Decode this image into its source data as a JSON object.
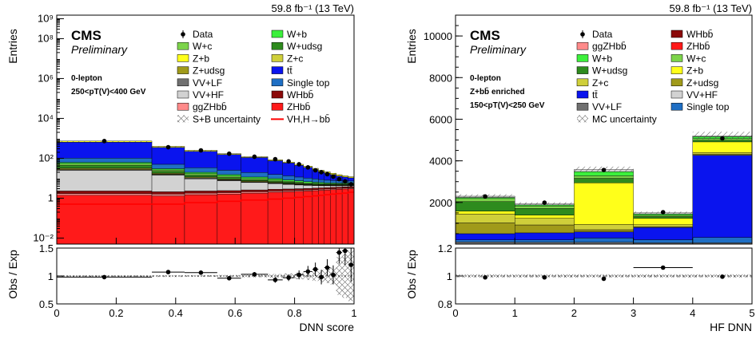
{
  "colors": {
    "ZHbb": "#ff1a1a",
    "ggZHbb": "#ff8a8a",
    "WHbb": "#8b0a0a",
    "Wb": "#3cf03c",
    "Wc": "#7cd44a",
    "Wudsg": "#2e8b1e",
    "Zb": "#ffff1a",
    "Zc": "#cfcf3a",
    "Zudsg": "#a09a1a",
    "ttbar": "#0a14ee",
    "singletop": "#1f6fc4",
    "VVLF": "#707070",
    "VVHF": "#d2d2d2",
    "signal_line": "#ff0000"
  },
  "chart_data": [
    {
      "type": "bar",
      "panel": "left",
      "lumi": "59.8 fb⁻¹ (13 TeV)",
      "cms": "CMS",
      "preliminary": "Preliminary",
      "region": [
        "0-lepton",
        "250<pT(V)<400 GeV"
      ],
      "ylabel": "Entries",
      "ratio_ylabel": "Obs / Exp",
      "xlabel": "DNN score",
      "ylog": true,
      "ylim": [
        0.005,
        1500000000.0
      ],
      "y_ticks": [
        "10⁻²",
        "1",
        "10²",
        "10⁴",
        "10⁶",
        "10⁸",
        "10⁹"
      ],
      "x_ticks": [
        "0",
        "0.2",
        "0.4",
        "0.6",
        "0.8",
        "1"
      ],
      "xlim": [
        0,
        1
      ],
      "ratio_ylim": [
        0.5,
        1.5
      ],
      "ratio_ticks": [
        "0.5",
        "1",
        "1.5"
      ],
      "legend": [
        {
          "label": "Data",
          "kind": "marker"
        },
        {
          "label": "W+b",
          "kind": "box",
          "color": "#3cf03c"
        },
        {
          "label": "W+c",
          "kind": "box",
          "color": "#7cd44a"
        },
        {
          "label": "W+udsg",
          "kind": "box",
          "color": "#2e8b1e"
        },
        {
          "label": "Z+b",
          "kind": "box",
          "color": "#ffff1a"
        },
        {
          "label": "Z+c",
          "kind": "box",
          "color": "#cfcf3a"
        },
        {
          "label": "Z+udsg",
          "kind": "box",
          "color": "#a09a1a"
        },
        {
          "label": "tt̄",
          "kind": "box",
          "color": "#0a14ee"
        },
        {
          "label": "VV+LF",
          "kind": "box",
          "color": "#707070"
        },
        {
          "label": "Single top",
          "kind": "box",
          "color": "#1f6fc4"
        },
        {
          "label": "VV+HF",
          "kind": "box",
          "color": "#d2d2d2"
        },
        {
          "label": "WHbb̄",
          "kind": "box",
          "color": "#8b0a0a"
        },
        {
          "label": "ggZHbb̄",
          "kind": "box",
          "color": "#ff8a8a"
        },
        {
          "label": "ZHbb̄",
          "kind": "box",
          "color": "#ff1a1a"
        },
        {
          "label": "S+B uncertainty",
          "kind": "hatch"
        },
        {
          "label": "VH,H→bb̄",
          "kind": "line",
          "color": "#ff0000"
        }
      ],
      "bin_edges": [
        0,
        0.32,
        0.43,
        0.54,
        0.62,
        0.71,
        0.76,
        0.8,
        0.83,
        0.86,
        0.88,
        0.9,
        0.92,
        0.94,
        0.96,
        0.98,
        1.0
      ],
      "stack_order": [
        "ZHbb",
        "ggZHbb",
        "WHbb",
        "VVHF",
        "VVLF",
        "Zudsg",
        "Zc",
        "Wudsg",
        "Wc",
        "Wb",
        "singletop",
        "ttbar",
        "Zb"
      ],
      "series": [
        {
          "name": "ZHbb̄",
          "key": "ZHbb",
          "values": [
            1.4,
            1.3,
            1.5,
            1.6,
            1.8,
            2.0,
            2.1,
            2.2,
            2.3,
            2.4,
            2.5,
            2.6,
            2.7,
            2.8,
            2.9,
            3.0
          ]
        },
        {
          "name": "ggZHbb̄",
          "key": "ggZHbb",
          "values": [
            0.3,
            0.3,
            0.3,
            0.3,
            0.3,
            0.3,
            0.3,
            0.3,
            0.3,
            0.3,
            0.3,
            0.3,
            0.3,
            0.3,
            0.3,
            0.3
          ]
        },
        {
          "name": "WHbb̄",
          "key": "WHbb",
          "values": [
            0.6,
            0.5,
            0.5,
            0.5,
            0.5,
            0.5,
            0.5,
            0.5,
            0.5,
            0.5,
            0.5,
            0.5,
            0.5,
            0.5,
            0.5,
            0.5
          ]
        },
        {
          "name": "VV+HF",
          "key": "VVHF",
          "values": [
            22,
            12,
            7,
            5,
            3.5,
            2.6,
            2.0,
            1.6,
            1.3,
            1.1,
            0.9,
            0.8,
            0.7,
            0.6,
            0.5,
            0.5
          ]
        },
        {
          "name": "VV+LF",
          "key": "VVLF",
          "values": [
            3,
            1.5,
            0.9,
            0.6,
            0.4,
            0.3,
            0.25,
            0.2,
            0.15,
            0.1,
            0.1,
            0.1,
            0.1,
            0.1,
            0.1,
            0.1
          ]
        },
        {
          "name": "Z+udsg",
          "key": "Zudsg",
          "values": [
            2,
            1,
            0.6,
            0.4,
            0.3,
            0.2,
            0.2,
            0.2,
            0.1,
            0.1,
            0.1,
            0.1,
            0.1,
            0.1,
            0.1,
            0.1
          ]
        },
        {
          "name": "Z+c",
          "key": "Zc",
          "values": [
            3,
            1.5,
            1,
            0.7,
            0.5,
            0.4,
            0.3,
            0.3,
            0.2,
            0.2,
            0.2,
            0.2,
            0.2,
            0.2,
            0.2,
            0.2
          ]
        },
        {
          "name": "W+udsg",
          "key": "Wudsg",
          "values": [
            12,
            4,
            2.5,
            1.8,
            1.2,
            0.9,
            0.7,
            0.6,
            0.5,
            0.4,
            0.4,
            0.3,
            0.3,
            0.3,
            0.3,
            0.3
          ]
        },
        {
          "name": "W+c",
          "key": "Wc",
          "values": [
            10,
            4,
            2.5,
            1.8,
            1.2,
            0.9,
            0.7,
            0.6,
            0.5,
            0.4,
            0.4,
            0.3,
            0.3,
            0.3,
            0.3,
            0.3
          ]
        },
        {
          "name": "W+b",
          "key": "Wb",
          "values": [
            8,
            4,
            3,
            2.5,
            1.8,
            1.5,
            1.2,
            1.0,
            0.9,
            0.8,
            0.7,
            0.6,
            0.6,
            0.5,
            0.5,
            0.5
          ]
        },
        {
          "name": "Single top",
          "key": "singletop",
          "values": [
            40,
            20,
            14,
            10,
            8,
            6,
            5,
            4,
            3.5,
            3,
            2.5,
            2.2,
            2,
            1.8,
            1.6,
            1.5
          ]
        },
        {
          "name": "tt̄",
          "key": "ttbar",
          "values": [
            540,
            300,
            190,
            130,
            90,
            60,
            45,
            33,
            25,
            18,
            13,
            10,
            7.5,
            5.5,
            4.2,
            3.2
          ]
        },
        {
          "name": "Z+b",
          "key": "Zb",
          "values": [
            90,
            45,
            25,
            15,
            10,
            8,
            6.5,
            5.5,
            4.5,
            4,
            3.5,
            3,
            2.5,
            2.0,
            1.7,
            1.4
          ]
        }
      ],
      "signal_line": [
        0.5,
        0.5,
        0.6,
        0.7,
        0.8,
        0.9,
        1.0,
        1.1,
        1.2,
        1.3,
        1.4,
        1.5,
        1.6,
        1.7,
        1.8,
        2.0
      ],
      "data": {
        "x": [
          0.16,
          0.375,
          0.485,
          0.58,
          0.665,
          0.735,
          0.78,
          0.815,
          0.845,
          0.87,
          0.89,
          0.91,
          0.93,
          0.95,
          0.97,
          0.99
        ],
        "y": [
          730,
          360,
          250,
          170,
          120,
          90,
          70,
          50,
          35,
          25,
          20,
          16,
          12,
          9,
          7,
          5
        ]
      },
      "ratio": {
        "x": [
          0.16,
          0.375,
          0.485,
          0.58,
          0.665,
          0.735,
          0.78,
          0.815,
          0.845,
          0.87,
          0.89,
          0.91,
          0.93,
          0.95,
          0.97,
          0.99
        ],
        "y": [
          0.98,
          1.07,
          1.06,
          0.96,
          1.03,
          0.93,
          0.97,
          1.02,
          1.08,
          1.12,
          0.98,
          1.15,
          1.02,
          1.42,
          1.45,
          1.2
        ],
        "xerr": [
          0.16,
          0.055,
          0.055,
          0.04,
          0.045,
          0.025,
          0.02,
          0.015,
          0.015,
          0.01,
          0.01,
          0.01,
          0.01,
          0.01,
          0.01,
          0.01
        ],
        "yerr": [
          0.01,
          0.02,
          0.02,
          0.03,
          0.04,
          0.05,
          0.06,
          0.08,
          0.1,
          0.12,
          0.13,
          0.15,
          0.17,
          0.2,
          0.25,
          0.3
        ]
      }
    },
    {
      "type": "bar",
      "panel": "right",
      "lumi": "59.8 fb⁻¹ (13 TeV)",
      "cms": "CMS",
      "preliminary": "Preliminary",
      "region": [
        "0-lepton",
        "Z+bb̄ enriched",
        "150<pT(V)<250 GeV"
      ],
      "ylabel": "Entries",
      "ratio_ylabel": "Obs / Exp",
      "xlabel": "HF DNN",
      "ylog": false,
      "ylim": [
        0,
        11000
      ],
      "y_ticks": [
        "2000",
        "4000",
        "6000",
        "8000",
        "10000"
      ],
      "x_ticks": [
        "0",
        "1",
        "2",
        "3",
        "4",
        "5"
      ],
      "xlim": [
        0,
        5
      ],
      "ratio_ylim": [
        0.8,
        1.2
      ],
      "ratio_ticks": [
        "0.8",
        "1",
        "1.2"
      ],
      "legend": [
        {
          "label": "Data",
          "kind": "marker"
        },
        {
          "label": "WHbb̄",
          "kind": "box",
          "color": "#8b0a0a"
        },
        {
          "label": "ggZHbb̄",
          "kind": "box",
          "color": "#ff8a8a"
        },
        {
          "label": "ZHbb̄",
          "kind": "box",
          "color": "#ff1a1a"
        },
        {
          "label": "W+b",
          "kind": "box",
          "color": "#3cf03c"
        },
        {
          "label": "W+c",
          "kind": "box",
          "color": "#7cd44a"
        },
        {
          "label": "W+udsg",
          "kind": "box",
          "color": "#2e8b1e"
        },
        {
          "label": "Z+b",
          "kind": "box",
          "color": "#ffff1a"
        },
        {
          "label": "Z+c",
          "kind": "box",
          "color": "#cfcf3a"
        },
        {
          "label": "Z+udsg",
          "kind": "box",
          "color": "#a09a1a"
        },
        {
          "label": "tt̄",
          "kind": "box",
          "color": "#0a14ee"
        },
        {
          "label": "VV+HF",
          "kind": "box",
          "color": "#d2d2d2"
        },
        {
          "label": "VV+LF",
          "kind": "box",
          "color": "#707070"
        },
        {
          "label": "Single top",
          "kind": "box",
          "color": "#1f6fc4"
        },
        {
          "label": "MC uncertainty",
          "kind": "hatch"
        }
      ],
      "bin_edges": [
        0,
        1,
        2,
        3,
        4,
        5
      ],
      "stack_order": [
        "VVLF",
        "singletop",
        "ttbar",
        "Zudsg",
        "Zc",
        "Zb",
        "Wudsg",
        "Wc",
        "Wb",
        "VVHF"
      ],
      "series": [
        {
          "name": "VV+LF",
          "key": "VVLF",
          "values": [
            100,
            90,
            90,
            60,
            60
          ]
        },
        {
          "name": "Single top",
          "key": "singletop",
          "values": [
            100,
            110,
            200,
            150,
            260
          ]
        },
        {
          "name": "tt̄",
          "key": "ttbar",
          "values": [
            300,
            340,
            300,
            590,
            3950
          ]
        },
        {
          "name": "Z+udsg",
          "key": "Zudsg",
          "values": [
            520,
            380,
            100,
            40,
            40
          ]
        },
        {
          "name": "Z+c",
          "key": "Zc",
          "values": [
            420,
            320,
            250,
            90,
            80
          ]
        },
        {
          "name": "Z+b",
          "key": "Zb",
          "values": [
            140,
            150,
            2000,
            310,
            520
          ]
        },
        {
          "name": "W+udsg",
          "key": "Wudsg",
          "values": [
            460,
            320,
            220,
            80,
            80
          ]
        },
        {
          "name": "W+c",
          "key": "Wc",
          "values": [
            150,
            120,
            120,
            60,
            80
          ]
        },
        {
          "name": "W+b",
          "key": "Wb",
          "values": [
            50,
            50,
            200,
            60,
            90
          ]
        },
        {
          "name": "VV+HF",
          "key": "VVHF",
          "values": [
            60,
            50,
            100,
            60,
            30
          ]
        }
      ],
      "data": {
        "x": [
          0.5,
          1.5,
          2.5,
          3.5,
          4.5
        ],
        "y": [
          2290,
          1990,
          3560,
          1530,
          5080
        ]
      },
      "ratio": {
        "x": [
          0.5,
          1.5,
          2.5,
          3.5,
          4.5
        ],
        "y": [
          0.99,
          0.99,
          0.98,
          1.06,
          0.995
        ],
        "xerr": [
          0,
          0,
          0,
          0.5,
          0
        ],
        "yerr": [
          0.01,
          0.01,
          0.01,
          0.01,
          0.01
        ]
      }
    }
  ]
}
